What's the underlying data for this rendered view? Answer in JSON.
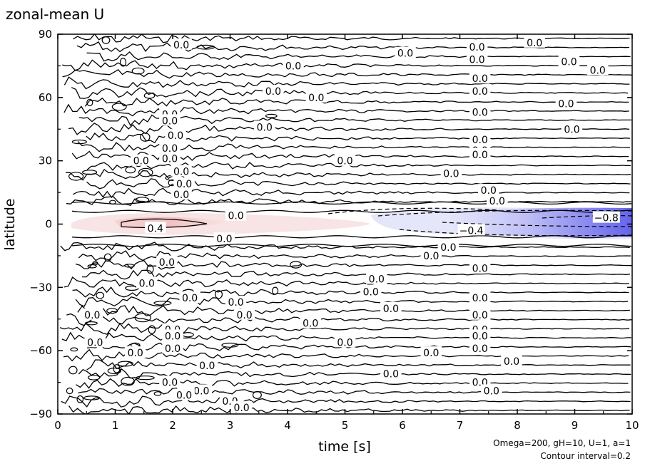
{
  "chart_data": {
    "type": "heatmap",
    "title": "zonal-mean U",
    "xlabel": "time [s]",
    "ylabel": "latitude",
    "xlim": [
      0,
      10
    ],
    "ylim": [
      -90,
      90
    ],
    "x_ticks": [
      0,
      1,
      2,
      3,
      4,
      5,
      6,
      7,
      8,
      9,
      10
    ],
    "y_ticks": [
      -90,
      -60,
      -30,
      0,
      30,
      60,
      90
    ],
    "x_tick_labels": [
      "0",
      "1",
      "2",
      "3",
      "4",
      "5",
      "6",
      "7",
      "8",
      "9",
      "10"
    ],
    "y_tick_labels": [
      "−90",
      "−60",
      "−30",
      "0",
      "30",
      "60",
      "90"
    ],
    "annotations": [
      "Omega=200, gH=10, U=1, a=1",
      "Contour interval=0.2"
    ],
    "contour_interval": 0.2,
    "colors": {
      "positive": "#cc3333",
      "negative": "#3333ee",
      "line": "#000000"
    },
    "contour_labels": [
      {
        "x": 2.15,
        "y": 85,
        "text": "0.0"
      },
      {
        "x": 6.05,
        "y": 81,
        "text": "0.0"
      },
      {
        "x": 7.3,
        "y": 84,
        "text": "0.0"
      },
      {
        "x": 8.3,
        "y": 86,
        "text": "0.0"
      },
      {
        "x": 7.3,
        "y": 78,
        "text": "0.0"
      },
      {
        "x": 4.1,
        "y": 75,
        "text": "0.0"
      },
      {
        "x": 8.9,
        "y": 77,
        "text": "0.0"
      },
      {
        "x": 9.4,
        "y": 73,
        "text": "0.0"
      },
      {
        "x": 3.75,
        "y": 63,
        "text": "0.0"
      },
      {
        "x": 4.5,
        "y": 60,
        "text": "0.0"
      },
      {
        "x": 7.35,
        "y": 69,
        "text": "0.0"
      },
      {
        "x": 7.35,
        "y": 63,
        "text": "0.0"
      },
      {
        "x": 8.85,
        "y": 57,
        "text": "0.0"
      },
      {
        "x": 1.95,
        "y": 52,
        "text": "0.0"
      },
      {
        "x": 7.35,
        "y": 53,
        "text": "0.0"
      },
      {
        "x": 1.95,
        "y": 49,
        "text": "0.0"
      },
      {
        "x": 3.6,
        "y": 46,
        "text": "0.0"
      },
      {
        "x": 8.95,
        "y": 45,
        "text": "0.0"
      },
      {
        "x": 2.05,
        "y": 42,
        "text": "0.0"
      },
      {
        "x": 1.95,
        "y": 36,
        "text": "0.0"
      },
      {
        "x": 7.35,
        "y": 40,
        "text": "0.0"
      },
      {
        "x": 7.35,
        "y": 35,
        "text": "0.0"
      },
      {
        "x": 7.35,
        "y": 33,
        "text": "0.0"
      },
      {
        "x": 1.95,
        "y": 31,
        "text": "0.0"
      },
      {
        "x": 1.45,
        "y": 30,
        "text": "0.0"
      },
      {
        "x": 5.0,
        "y": 30,
        "text": "0.0"
      },
      {
        "x": 2.15,
        "y": 25,
        "text": "0.0"
      },
      {
        "x": 6.85,
        "y": 24,
        "text": "0.0"
      },
      {
        "x": 2.2,
        "y": 19,
        "text": "0.0"
      },
      {
        "x": 7.5,
        "y": 16,
        "text": "0.0"
      },
      {
        "x": 2.15,
        "y": 14,
        "text": "0.0"
      },
      {
        "x": 7.65,
        "y": 11,
        "text": "0.0"
      },
      {
        "x": 3.1,
        "y": 4,
        "text": "0.0"
      },
      {
        "x": 1.7,
        "y": -2,
        "text": "0.4"
      },
      {
        "x": 7.2,
        "y": -3,
        "text": "−0.4"
      },
      {
        "x": 9.55,
        "y": 3,
        "text": "−0.8"
      },
      {
        "x": 2.9,
        "y": -7,
        "text": "0.0"
      },
      {
        "x": 6.8,
        "y": -11,
        "text": "0.0"
      },
      {
        "x": 6.5,
        "y": -15,
        "text": "0.0"
      },
      {
        "x": 1.9,
        "y": -18,
        "text": "0.0"
      },
      {
        "x": 7.35,
        "y": -21,
        "text": "0.0"
      },
      {
        "x": 1.55,
        "y": -28,
        "text": "0.0"
      },
      {
        "x": 5.55,
        "y": -26,
        "text": "0.0"
      },
      {
        "x": 5.45,
        "y": -32,
        "text": "0.0"
      },
      {
        "x": 7.35,
        "y": -35,
        "text": "0.0"
      },
      {
        "x": 2.3,
        "y": -35,
        "text": "0.0"
      },
      {
        "x": 3.1,
        "y": -37,
        "text": "0.0"
      },
      {
        "x": 5.8,
        "y": -40,
        "text": "0.0"
      },
      {
        "x": 0.6,
        "y": -43,
        "text": "0.0"
      },
      {
        "x": 3.25,
        "y": -43,
        "text": "0.0"
      },
      {
        "x": 7.35,
        "y": -43,
        "text": "0.0"
      },
      {
        "x": 4.4,
        "y": -47,
        "text": "0.0"
      },
      {
        "x": 2.0,
        "y": -50,
        "text": "0.0"
      },
      {
        "x": 7.35,
        "y": -50,
        "text": "0.0"
      },
      {
        "x": 2.0,
        "y": -53,
        "text": "0.0"
      },
      {
        "x": 7.35,
        "y": -53,
        "text": "0.0"
      },
      {
        "x": 0.65,
        "y": -56,
        "text": "0.0"
      },
      {
        "x": 5.0,
        "y": -56,
        "text": "0.0"
      },
      {
        "x": 2.0,
        "y": -59,
        "text": "0.0"
      },
      {
        "x": 7.35,
        "y": -59,
        "text": "0.0"
      },
      {
        "x": 1.35,
        "y": -61,
        "text": "0.0"
      },
      {
        "x": 6.5,
        "y": -61,
        "text": "0.0"
      },
      {
        "x": 7.9,
        "y": -65,
        "text": "0.0"
      },
      {
        "x": 2.6,
        "y": -67,
        "text": "0.0"
      },
      {
        "x": 5.8,
        "y": -71,
        "text": "0.0"
      },
      {
        "x": 1.95,
        "y": -75,
        "text": "0.0"
      },
      {
        "x": 7.35,
        "y": -75,
        "text": "0.0"
      },
      {
        "x": 2.5,
        "y": -79,
        "text": "0.0"
      },
      {
        "x": 7.55,
        "y": -79,
        "text": "0.0"
      },
      {
        "x": 2.2,
        "y": -81,
        "text": "0.0"
      },
      {
        "x": 3.0,
        "y": -84,
        "text": "0.0"
      },
      {
        "x": 3.2,
        "y": -87,
        "text": "0.0"
      }
    ]
  }
}
